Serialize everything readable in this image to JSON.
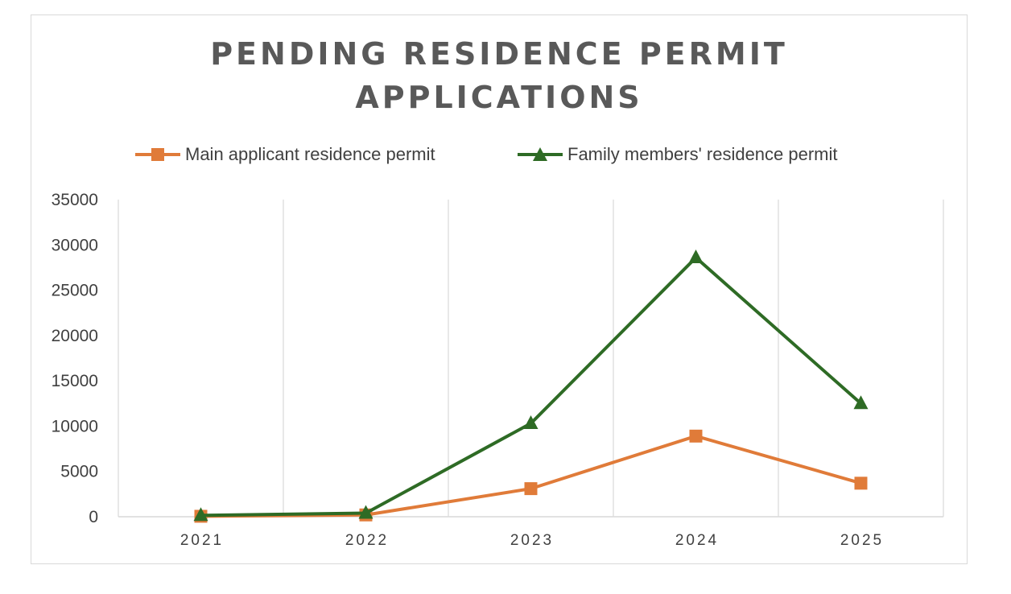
{
  "chart_data": {
    "type": "line",
    "title_lines": [
      "PENDING RESIDENCE PERMIT",
      "APPLICATIONS"
    ],
    "categories": [
      "2021",
      "2022",
      "2023",
      "2024",
      "2025"
    ],
    "series": [
      {
        "name": "Main applicant residence permit",
        "values": [
          50,
          200,
          3100,
          8900,
          3700
        ],
        "color": "#E07B39",
        "marker": "square"
      },
      {
        "name": "Family members' residence permit",
        "values": [
          150,
          400,
          10300,
          28600,
          12500
        ],
        "color": "#2E6B25",
        "marker": "triangle"
      }
    ],
    "yticks": [
      "0",
      "5000",
      "10000",
      "15000",
      "20000",
      "25000",
      "30000",
      "35000"
    ],
    "ylim": [
      0,
      35000
    ],
    "xlabel": "",
    "ylabel": "",
    "grid": "vertical",
    "legend_position": "top"
  }
}
